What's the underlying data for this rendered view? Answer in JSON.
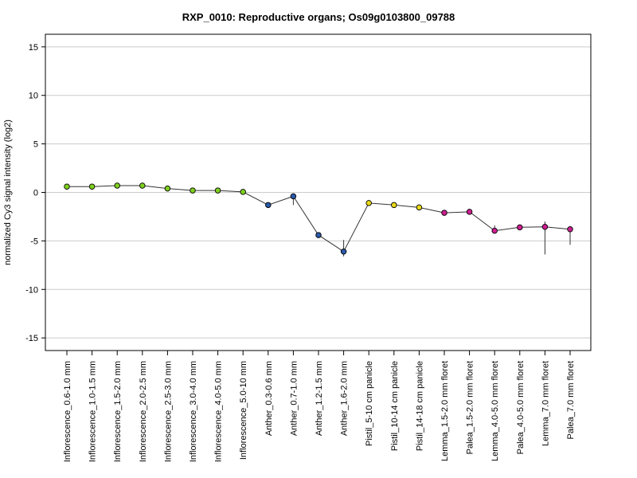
{
  "chart_data": {
    "type": "line",
    "title": "RXP_0010: Reproductive organs; Os09g0103800_09788",
    "xlabel": "",
    "ylabel": "normalized Cy3 signal intensity (log2)",
    "ylim": [
      -16.3,
      16.3
    ],
    "yticks": [
      15,
      10,
      5,
      0,
      -5,
      -10,
      -15
    ],
    "grid": true,
    "categories": [
      "Inflorescence_0.6-1.0 mm",
      "Inflorescence_1.0-1.5 mm",
      "Inflorescence_1.5-2.0 mm",
      "Inflorescence_2.0-2.5 mm",
      "Inflorescence_2.5-3.0 mm",
      "Inflorescence_3.0-4.0 mm",
      "Inflorescence_4.0-5.0 mm",
      "Inflorescence_5.0-10 mm",
      "Anther_0.3-0.6 mm",
      "Anther_0.7-1.0 mm",
      "Anther_1.2-1.5 mm",
      "Anther_1.6-2.0 mm",
      "Pistil_5-10 cm panicle",
      "Pistil_10-14 cm panicle",
      "Pistil_14-18 cm panicle",
      "Lemma_1.5-2.0 mm floret",
      "Palea_1.5-2.0 mm floret",
      "Lemma_4.0-5.0 mm floret",
      "Palea_4.0-5.0 mm floret",
      "Lemma_7.0 mm floret",
      "Palea_7.0 mm floret"
    ],
    "series": [
      {
        "values": [
          0.6,
          0.6,
          0.7,
          0.7,
          0.4,
          0.2,
          0.2,
          0.05,
          -1.3,
          -0.4,
          -4.4,
          -6.1,
          -1.1,
          -1.3,
          -1.55,
          -2.1,
          -2.0,
          -3.95,
          -3.6,
          -3.55,
          -3.8
        ],
        "err_low": [
          0.5,
          0.5,
          0.6,
          0.6,
          0.3,
          0.1,
          0.1,
          -0.05,
          -1.4,
          -1.3,
          -4.6,
          -6.6,
          -1.2,
          -1.4,
          -1.85,
          -2.2,
          -2.1,
          -4.1,
          -3.9,
          -6.4,
          -5.4
        ],
        "err_high": [
          0.7,
          0.7,
          0.8,
          0.8,
          0.5,
          0.3,
          0.3,
          0.15,
          -1.2,
          -0.2,
          -4.2,
          -4.9,
          -1.0,
          -1.2,
          -1.3,
          -2.0,
          -1.9,
          -3.4,
          -3.4,
          -3.0,
          -3.6
        ],
        "colors": [
          "#7fcf1f",
          "#7fcf1f",
          "#7fcf1f",
          "#7fcf1f",
          "#7fcf1f",
          "#7fcf1f",
          "#7fcf1f",
          "#7fcf1f",
          "#2a59a8",
          "#2a59a8",
          "#2a59a8",
          "#2a59a8",
          "#e8d919",
          "#e8d919",
          "#e8d919",
          "#cc1f90",
          "#cc1f90",
          "#cc1f90",
          "#cc1f90",
          "#cc1f90",
          "#cc1f90"
        ]
      }
    ]
  },
  "colors": {
    "line": "#333333",
    "grid": "#cccccc",
    "frame": "#000000"
  }
}
